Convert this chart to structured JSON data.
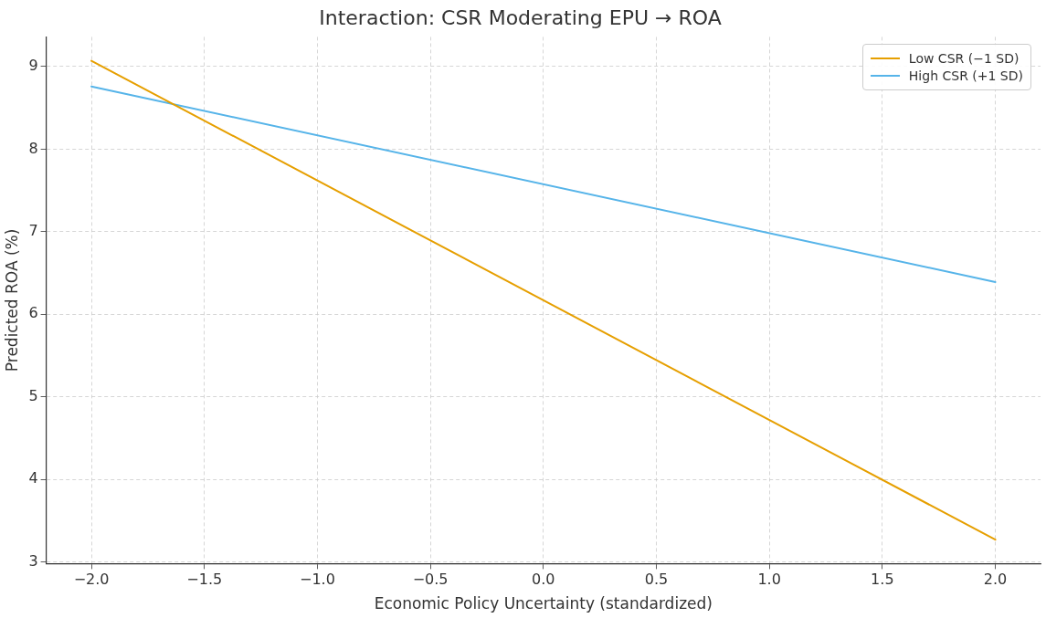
{
  "chart_data": {
    "type": "line",
    "title": "Interaction: CSR Moderating EPU → ROA",
    "xlabel": "Economic Policy Uncertainty (standardized)",
    "ylabel": "Predicted ROA (%)",
    "x": [
      -2.0,
      2.0
    ],
    "series": [
      {
        "name": "Low CSR (−1 SD)",
        "color": "#e69f00",
        "values": [
          9.07,
          3.27
        ]
      },
      {
        "name": "High CSR (+1 SD)",
        "color": "#56b4e9",
        "values": [
          8.76,
          6.39
        ]
      }
    ],
    "xlim": [
      -2.2,
      2.2
    ],
    "ylim": [
      2.98,
      9.36
    ],
    "xticks": [
      {
        "value": -2.0,
        "label": "−2.0"
      },
      {
        "value": -1.5,
        "label": "−1.5"
      },
      {
        "value": -1.0,
        "label": "−1.0"
      },
      {
        "value": -0.5,
        "label": "−0.5"
      },
      {
        "value": 0.0,
        "label": "0.0"
      },
      {
        "value": 0.5,
        "label": "0.5"
      },
      {
        "value": 1.0,
        "label": "1.0"
      },
      {
        "value": 1.5,
        "label": "1.5"
      },
      {
        "value": 2.0,
        "label": "2.0"
      }
    ],
    "yticks": [
      3,
      4,
      5,
      6,
      7,
      8,
      9
    ],
    "grid": true,
    "legend": "top right",
    "marker": "none",
    "line_style": "solid"
  }
}
